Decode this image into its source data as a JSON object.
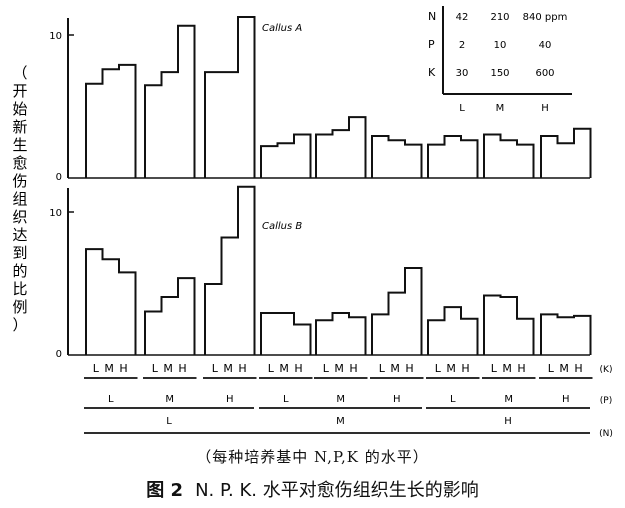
{
  "chart_data": {
    "type": "bar",
    "ylabel": "（开始新生愈伤组织达到的比例）",
    "xlabel": "（每种培养基中 N,P,K 的水平）",
    "caption_number": "图 2",
    "caption_text": "N. P. K. 水平对愈伤组织生长的影响",
    "levels": [
      "L",
      "M",
      "H"
    ],
    "axis_level_labels": {
      "K": "(K)",
      "P": "(P)",
      "N": "(N)"
    },
    "legend_table": {
      "rows": [
        {
          "nutrient": "N",
          "values": [
            "42",
            "210",
            "840 ppm"
          ]
        },
        {
          "nutrient": "P",
          "values": [
            "2",
            "10",
            "40"
          ]
        },
        {
          "nutrient": "K",
          "values": [
            "30",
            "150",
            "600"
          ]
        }
      ],
      "columns": [
        "L",
        "M",
        "H"
      ]
    },
    "panels": [
      {
        "name": "Callus A",
        "ylim": [
          0,
          11.5
        ],
        "ticks": [
          "0",
          "10"
        ],
        "groups": [
          {
            "N": "L",
            "P": "L",
            "K_values": [
              6.5,
              7.5,
              7.8
            ]
          },
          {
            "N": "L",
            "P": "M",
            "K_values": [
              6.4,
              7.3,
              10.5
            ]
          },
          {
            "N": "L",
            "P": "H",
            "K_values": [
              7.3,
              7.3,
              11.1
            ]
          },
          {
            "N": "M",
            "P": "L",
            "K_values": [
              2.2,
              2.4,
              3.0
            ]
          },
          {
            "N": "M",
            "P": "M",
            "K_values": [
              3.0,
              3.3,
              4.2
            ]
          },
          {
            "N": "M",
            "P": "H",
            "K_values": [
              2.9,
              2.6,
              2.3
            ]
          },
          {
            "N": "H",
            "P": "L",
            "K_values": [
              2.3,
              2.9,
              2.6
            ]
          },
          {
            "N": "H",
            "P": "M",
            "K_values": [
              3.0,
              2.6,
              2.3
            ]
          },
          {
            "N": "H",
            "P": "H",
            "K_values": [
              2.9,
              2.4,
              3.4
            ]
          }
        ]
      },
      {
        "name": "Callus B",
        "ylim": [
          0,
          11.5
        ],
        "ticks": [
          "0",
          "10"
        ],
        "groups": [
          {
            "N": "L",
            "P": "L",
            "K_values": [
              7.3,
              6.6,
              5.7
            ]
          },
          {
            "N": "L",
            "P": "M",
            "K_values": [
              3.0,
              4.0,
              5.3
            ]
          },
          {
            "N": "L",
            "P": "H",
            "K_values": [
              4.9,
              8.1,
              11.6
            ]
          },
          {
            "N": "M",
            "P": "L",
            "K_values": [
              2.9,
              2.9,
              2.1
            ]
          },
          {
            "N": "M",
            "P": "M",
            "K_values": [
              2.4,
              2.9,
              2.6
            ]
          },
          {
            "N": "M",
            "P": "H",
            "K_values": [
              2.8,
              4.3,
              6.0
            ]
          },
          {
            "N": "H",
            "P": "L",
            "K_values": [
              2.4,
              3.3,
              2.5
            ]
          },
          {
            "N": "H",
            "P": "M",
            "K_values": [
              4.1,
              4.0,
              2.5
            ]
          },
          {
            "N": "H",
            "P": "H",
            "K_values": [
              2.8,
              2.6,
              2.7
            ]
          }
        ]
      }
    ]
  }
}
